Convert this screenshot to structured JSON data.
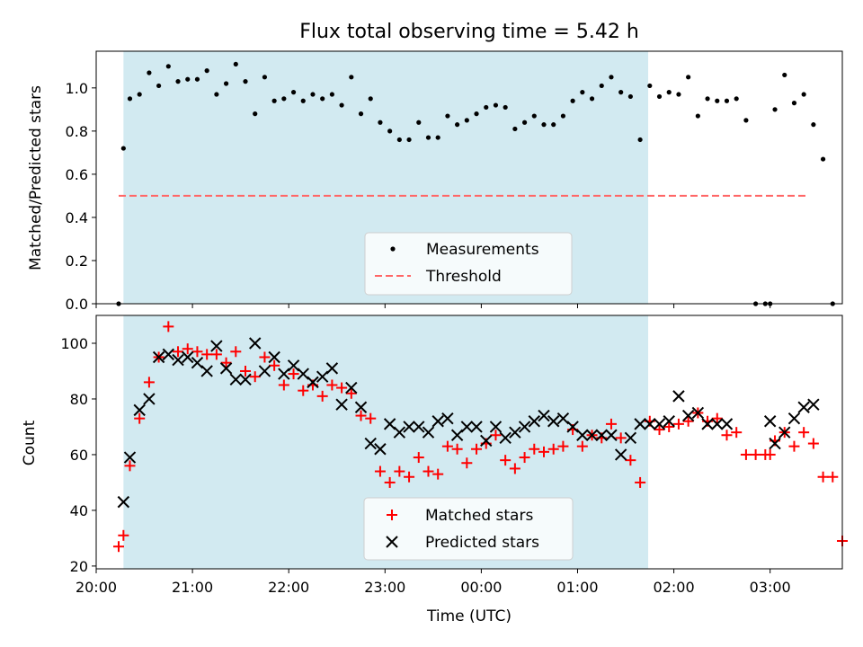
{
  "chart_data": [
    {
      "type": "scatter",
      "title": "Flux total observing time = 5.42 h",
      "xlabel": "",
      "ylabel": "Matched/Predicted stars",
      "xlim": [
        "20:00",
        "03:45"
      ],
      "ylim": [
        0,
        1.17
      ],
      "yticks": [
        "0.0",
        "0.2",
        "0.4",
        "0.6",
        "0.8",
        "1.0"
      ],
      "shaded_span": [
        "20:17",
        "01:44"
      ],
      "shade_color": "#add8e6",
      "threshold": {
        "value": 0.5,
        "x": [
          "20:14",
          "03:24"
        ],
        "color": "#ff6666"
      },
      "legend": {
        "placement": "bottom-center",
        "entries": [
          "Measurements",
          "Threshold"
        ]
      },
      "series": [
        {
          "name": "Measurements",
          "color": "#000000",
          "marker": "dot",
          "points": [
            [
              "20:14",
              0.0
            ],
            [
              "20:17",
              0.72
            ],
            [
              "20:21",
              0.95
            ],
            [
              "20:27",
              0.97
            ],
            [
              "20:33",
              1.07
            ],
            [
              "20:39",
              1.01
            ],
            [
              "20:45",
              1.1
            ],
            [
              "20:51",
              1.03
            ],
            [
              "20:57",
              1.04
            ],
            [
              "21:03",
              1.04
            ],
            [
              "21:09",
              1.08
            ],
            [
              "21:15",
              0.97
            ],
            [
              "21:21",
              1.02
            ],
            [
              "21:27",
              1.11
            ],
            [
              "21:33",
              1.03
            ],
            [
              "21:39",
              0.88
            ],
            [
              "21:45",
              1.05
            ],
            [
              "21:51",
              0.94
            ],
            [
              "21:57",
              0.95
            ],
            [
              "22:03",
              0.98
            ],
            [
              "22:09",
              0.94
            ],
            [
              "22:15",
              0.97
            ],
            [
              "22:21",
              0.95
            ],
            [
              "22:27",
              0.97
            ],
            [
              "22:33",
              0.92
            ],
            [
              "22:39",
              1.05
            ],
            [
              "22:45",
              0.88
            ],
            [
              "22:51",
              0.95
            ],
            [
              "22:57",
              0.84
            ],
            [
              "23:03",
              0.8
            ],
            [
              "23:09",
              0.76
            ],
            [
              "23:15",
              0.76
            ],
            [
              "23:21",
              0.84
            ],
            [
              "23:27",
              0.77
            ],
            [
              "23:33",
              0.77
            ],
            [
              "23:39",
              0.87
            ],
            [
              "23:45",
              0.83
            ],
            [
              "23:51",
              0.85
            ],
            [
              "23:57",
              0.88
            ],
            [
              "00:03",
              0.91
            ],
            [
              "00:09",
              0.92
            ],
            [
              "00:15",
              0.91
            ],
            [
              "00:21",
              0.81
            ],
            [
              "00:27",
              0.84
            ],
            [
              "00:33",
              0.87
            ],
            [
              "00:39",
              0.83
            ],
            [
              "00:45",
              0.83
            ],
            [
              "00:51",
              0.87
            ],
            [
              "00:57",
              0.94
            ],
            [
              "01:03",
              0.98
            ],
            [
              "01:09",
              0.95
            ],
            [
              "01:15",
              1.01
            ],
            [
              "01:21",
              1.05
            ],
            [
              "01:27",
              0.98
            ],
            [
              "01:33",
              0.96
            ],
            [
              "01:39",
              0.76
            ],
            [
              "01:45",
              1.01
            ],
            [
              "01:51",
              0.96
            ],
            [
              "01:57",
              0.98
            ],
            [
              "02:03",
              0.97
            ],
            [
              "02:09",
              1.05
            ],
            [
              "02:15",
              0.87
            ],
            [
              "02:21",
              0.95
            ],
            [
              "02:27",
              0.94
            ],
            [
              "02:33",
              0.94
            ],
            [
              "02:39",
              0.95
            ],
            [
              "02:45",
              0.85
            ],
            [
              "02:51",
              0.0
            ],
            [
              "02:57",
              0.0
            ],
            [
              "03:00",
              0.0
            ],
            [
              "03:03",
              0.9
            ],
            [
              "03:09",
              1.06
            ],
            [
              "03:15",
              0.93
            ],
            [
              "03:21",
              0.97
            ],
            [
              "03:27",
              0.83
            ],
            [
              "03:33",
              0.67
            ],
            [
              "03:39",
              0.0
            ]
          ]
        }
      ]
    },
    {
      "type": "scatter",
      "title": "",
      "xlabel": "Time (UTC)",
      "ylabel": "Count",
      "xlim": [
        "20:00",
        "03:45"
      ],
      "ylim": [
        19,
        110
      ],
      "xticks": [
        "20:00",
        "21:00",
        "22:00",
        "23:00",
        "00:00",
        "01:00",
        "02:00",
        "03:00"
      ],
      "yticks": [
        "20",
        "40",
        "60",
        "80",
        "100"
      ],
      "shaded_span": [
        "20:17",
        "01:44"
      ],
      "shade_color": "#add8e6",
      "legend": {
        "placement": "bottom-center",
        "entries": [
          "Matched stars",
          "Predicted stars"
        ]
      },
      "series": [
        {
          "name": "Matched stars",
          "color": "#ff0000",
          "marker": "plus",
          "points": [
            [
              "20:14",
              27
            ],
            [
              "20:17",
              31
            ],
            [
              "20:21",
              56
            ],
            [
              "20:27",
              73
            ],
            [
              "20:33",
              86
            ],
            [
              "20:39",
              95
            ],
            [
              "20:45",
              106
            ],
            [
              "20:51",
              97
            ],
            [
              "20:57",
              98
            ],
            [
              "21:03",
              97
            ],
            [
              "21:09",
              96
            ],
            [
              "21:15",
              96
            ],
            [
              "21:21",
              93
            ],
            [
              "21:27",
              97
            ],
            [
              "21:33",
              90
            ],
            [
              "21:39",
              88
            ],
            [
              "21:45",
              95
            ],
            [
              "21:51",
              92
            ],
            [
              "21:57",
              85
            ],
            [
              "22:03",
              89
            ],
            [
              "22:09",
              83
            ],
            [
              "22:15",
              85
            ],
            [
              "22:21",
              81
            ],
            [
              "22:27",
              85
            ],
            [
              "22:33",
              84
            ],
            [
              "22:39",
              82
            ],
            [
              "22:45",
              74
            ],
            [
              "22:51",
              73
            ],
            [
              "22:57",
              54
            ],
            [
              "23:03",
              50
            ],
            [
              "23:09",
              54
            ],
            [
              "23:15",
              52
            ],
            [
              "23:21",
              59
            ],
            [
              "23:27",
              54
            ],
            [
              "23:33",
              53
            ],
            [
              "23:39",
              63
            ],
            [
              "23:45",
              62
            ],
            [
              "23:51",
              57
            ],
            [
              "23:57",
              62
            ],
            [
              "00:03",
              64
            ],
            [
              "00:09",
              67
            ],
            [
              "00:15",
              58
            ],
            [
              "00:21",
              55
            ],
            [
              "00:27",
              59
            ],
            [
              "00:33",
              62
            ],
            [
              "00:39",
              61
            ],
            [
              "00:45",
              62
            ],
            [
              "00:51",
              63
            ],
            [
              "00:57",
              69
            ],
            [
              "01:03",
              63
            ],
            [
              "01:09",
              67
            ],
            [
              "01:15",
              66
            ],
            [
              "01:21",
              71
            ],
            [
              "01:27",
              66
            ],
            [
              "01:33",
              58
            ],
            [
              "01:39",
              50
            ],
            [
              "01:45",
              72
            ],
            [
              "01:51",
              69
            ],
            [
              "01:57",
              70
            ],
            [
              "02:03",
              71
            ],
            [
              "02:09",
              72
            ],
            [
              "02:15",
              75
            ],
            [
              "02:21",
              72
            ],
            [
              "02:27",
              73
            ],
            [
              "02:33",
              67
            ],
            [
              "02:39",
              68
            ],
            [
              "02:45",
              60
            ],
            [
              "02:51",
              60
            ],
            [
              "02:57",
              60
            ],
            [
              "03:00",
              60
            ],
            [
              "03:03",
              65
            ],
            [
              "03:09",
              68
            ],
            [
              "03:15",
              63
            ],
            [
              "03:21",
              68
            ],
            [
              "03:27",
              64
            ],
            [
              "03:33",
              52
            ],
            [
              "03:39",
              52
            ],
            [
              "03:45",
              29
            ]
          ]
        },
        {
          "name": "Predicted stars",
          "color": "#000000",
          "marker": "x",
          "points": [
            [
              "20:17",
              43
            ],
            [
              "20:21",
              59
            ],
            [
              "20:27",
              76
            ],
            [
              "20:33",
              80
            ],
            [
              "20:39",
              95
            ],
            [
              "20:45",
              96
            ],
            [
              "20:51",
              94
            ],
            [
              "20:57",
              95
            ],
            [
              "21:03",
              93
            ],
            [
              "21:09",
              90
            ],
            [
              "21:15",
              99
            ],
            [
              "21:21",
              91
            ],
            [
              "21:27",
              87
            ],
            [
              "21:33",
              87
            ],
            [
              "21:39",
              100
            ],
            [
              "21:45",
              90
            ],
            [
              "21:51",
              95
            ],
            [
              "21:57",
              89
            ],
            [
              "22:03",
              92
            ],
            [
              "22:09",
              89
            ],
            [
              "22:15",
              86
            ],
            [
              "22:21",
              88
            ],
            [
              "22:27",
              91
            ],
            [
              "22:33",
              78
            ],
            [
              "22:39",
              84
            ],
            [
              "22:45",
              77
            ],
            [
              "22:51",
              64
            ],
            [
              "22:57",
              62
            ],
            [
              "23:03",
              71
            ],
            [
              "23:09",
              68
            ],
            [
              "23:15",
              70
            ],
            [
              "23:21",
              70
            ],
            [
              "23:27",
              68
            ],
            [
              "23:33",
              72
            ],
            [
              "23:39",
              73
            ],
            [
              "23:45",
              67
            ],
            [
              "23:51",
              70
            ],
            [
              "23:57",
              70
            ],
            [
              "00:03",
              65
            ],
            [
              "00:09",
              70
            ],
            [
              "00:15",
              66
            ],
            [
              "00:21",
              68
            ],
            [
              "00:27",
              70
            ],
            [
              "00:33",
              72
            ],
            [
              "00:39",
              74
            ],
            [
              "00:45",
              72
            ],
            [
              "00:51",
              73
            ],
            [
              "00:57",
              70
            ],
            [
              "01:03",
              67
            ],
            [
              "01:09",
              67
            ],
            [
              "01:15",
              67
            ],
            [
              "01:21",
              67
            ],
            [
              "01:27",
              60
            ],
            [
              "01:33",
              66
            ],
            [
              "01:39",
              71
            ],
            [
              "01:45",
              71
            ],
            [
              "01:51",
              71
            ],
            [
              "01:57",
              72
            ],
            [
              "02:03",
              81
            ],
            [
              "02:09",
              74
            ],
            [
              "02:15",
              75
            ],
            [
              "02:21",
              71
            ],
            [
              "02:27",
              71
            ],
            [
              "02:33",
              71
            ],
            [
              "03:00",
              72
            ],
            [
              "03:03",
              64
            ],
            [
              "03:09",
              68
            ],
            [
              "03:15",
              73
            ],
            [
              "03:21",
              77
            ],
            [
              "03:27",
              78
            ]
          ]
        }
      ]
    }
  ]
}
